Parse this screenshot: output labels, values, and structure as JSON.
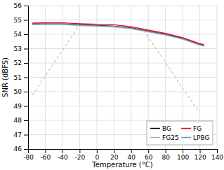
{
  "chart_data": {
    "type": "line",
    "xlabel": "Temperature (°C)",
    "ylabel": "SNR (dBFS)",
    "xlim": [
      -80,
      140
    ],
    "ylim": [
      46,
      56
    ],
    "xticks": [
      -80,
      -60,
      -40,
      -20,
      0,
      20,
      40,
      60,
      80,
      100,
      120,
      140
    ],
    "yticks": [
      46,
      47,
      48,
      49,
      50,
      51,
      52,
      53,
      54,
      55,
      56
    ],
    "grid": true,
    "legend": "lower right",
    "series": [
      {
        "name": "BG",
        "color": "#000000",
        "line_style": "solid",
        "x": [
          -75,
          -60,
          -40,
          -20,
          0,
          10,
          20,
          40,
          60,
          80,
          100,
          120,
          125
        ],
        "values": [
          54.72,
          54.73,
          54.73,
          54.66,
          54.61,
          54.59,
          54.57,
          54.45,
          54.22,
          54.0,
          53.72,
          53.3,
          53.22
        ]
      },
      {
        "name": "FG25",
        "color": "#b0b0b0",
        "line_style": "solid",
        "x": [
          -75,
          -60,
          -40,
          -20,
          0,
          10,
          20,
          40,
          60,
          80,
          100,
          120,
          125
        ],
        "values": [
          54.67,
          54.68,
          54.68,
          54.6,
          54.55,
          54.53,
          54.51,
          54.38,
          54.16,
          53.94,
          53.65,
          53.24,
          53.16
        ]
      },
      {
        "name": "FG",
        "color": "#ff0000",
        "line_style": "solid",
        "x": [
          -75,
          -60,
          -40,
          -20,
          0,
          10,
          20,
          40,
          60,
          80,
          100,
          120,
          125
        ],
        "values": [
          54.78,
          54.8,
          54.8,
          54.74,
          54.7,
          54.68,
          54.66,
          54.53,
          54.3,
          54.07,
          53.76,
          53.35,
          53.27
        ]
      },
      {
        "name": "LPBG",
        "color": "#5b9bd5",
        "line_style": "solid",
        "x": [
          -75,
          -60,
          -40,
          -20,
          0,
          10,
          20,
          40,
          60,
          80,
          100,
          120,
          125
        ],
        "values": [
          54.7,
          54.72,
          54.72,
          54.64,
          54.59,
          54.57,
          54.55,
          54.42,
          54.2,
          53.98,
          53.69,
          53.28,
          53.2
        ]
      },
      {
        "color": "#b0b0b0",
        "line_style": "dashed",
        "x": [
          -75,
          -20
        ],
        "values": [
          49.75,
          54.66
        ]
      },
      {
        "color": "#b0b0b0",
        "line_style": "dashed",
        "x": [
          55,
          118
        ],
        "values": [
          54.24,
          48.65
        ]
      }
    ]
  }
}
